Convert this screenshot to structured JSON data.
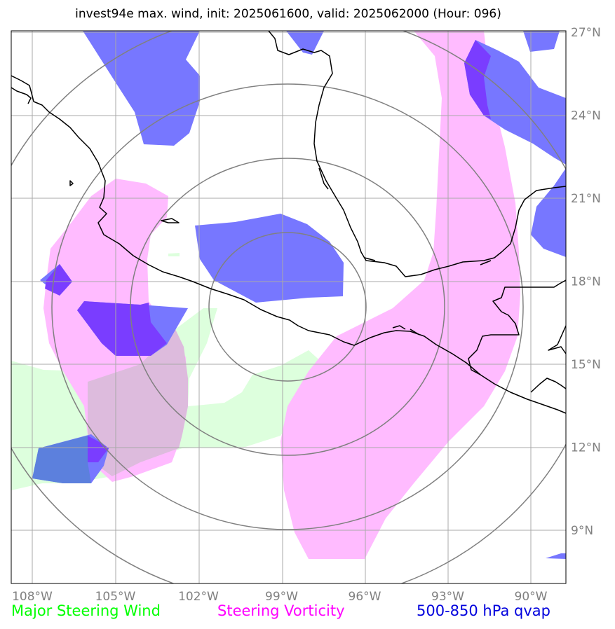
{
  "title": "invest94e max. wind, init: 2025061600, valid: 2025062000 (Hour: 096)",
  "map": {
    "lon_ticks": [
      "108°W",
      "105°W",
      "102°W",
      "99°W",
      "96°W",
      "93°W",
      "90°W"
    ],
    "lat_ticks": [
      "27°N",
      "24°N",
      "21°N",
      "18°N",
      "15°N",
      "12°N",
      "9°N"
    ],
    "lon_range": [
      -108.75,
      -88.75
    ],
    "lat_range": [
      7.0,
      27.0
    ],
    "center": {
      "lon": -99.0,
      "lat": 16.1
    },
    "range_rings": 4,
    "grid": true,
    "colors": {
      "steering_wind": "#ddffdd",
      "steering_vorticity": "#ffbbff",
      "qvap": "#7777ff",
      "qvap_over_vorticity": "#7a3dff",
      "qvap_over_wind": "#5c80dd",
      "vorticity_over_wind": "#ddbbdd",
      "coastline": "#000000",
      "rings": "#808080",
      "grid": "#a9a9a9"
    }
  },
  "legend": {
    "wind_label": "Major Steering Wind",
    "vorticity_label": "Steering Vorticity",
    "qvap_label": "500-850 hPa qvap",
    "wind_color": "#00ff00",
    "vorticity_color": "#ff00ff",
    "qvap_color": "#0000dd"
  }
}
